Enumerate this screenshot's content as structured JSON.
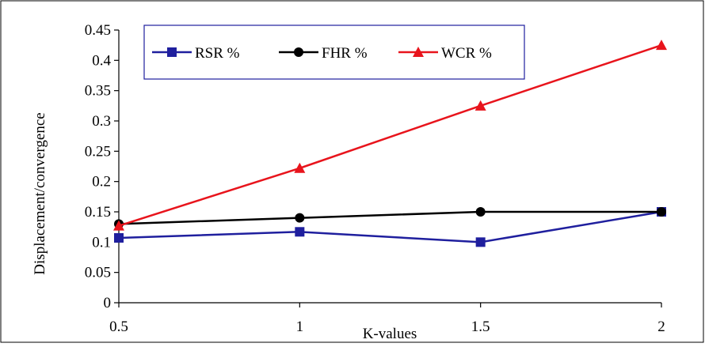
{
  "chart_data": {
    "type": "line",
    "title": "",
    "xlabel": "K-values",
    "ylabel": "Displacement/convergence",
    "x": [
      0.5,
      1,
      1.5,
      2
    ],
    "x_tick_labels": [
      "0.5",
      "1",
      "1.5",
      "2"
    ],
    "xlim": [
      0.5,
      2
    ],
    "ylim": [
      0,
      0.45
    ],
    "y_ticks": [
      0,
      0.05,
      0.1,
      0.15,
      0.2,
      0.25,
      0.3,
      0.35,
      0.4,
      0.45
    ],
    "y_tick_labels": [
      "0",
      "0.05",
      "0.1",
      "0.15",
      "0.2",
      "0.25",
      "0.3",
      "0.35",
      "0.4",
      "0.45"
    ],
    "grid": false,
    "legend_position": "top-left",
    "series": [
      {
        "name": "RSR %",
        "values": [
          0.107,
          0.117,
          0.1,
          0.15
        ],
        "color": "#1f1f9e",
        "marker": "square"
      },
      {
        "name": "FHR %",
        "values": [
          0.13,
          0.14,
          0.15,
          0.15
        ],
        "color": "#000000",
        "marker": "circle"
      },
      {
        "name": "WCR %",
        "values": [
          0.127,
          0.222,
          0.325,
          0.425
        ],
        "color": "#e8141c",
        "marker": "triangle"
      }
    ]
  }
}
